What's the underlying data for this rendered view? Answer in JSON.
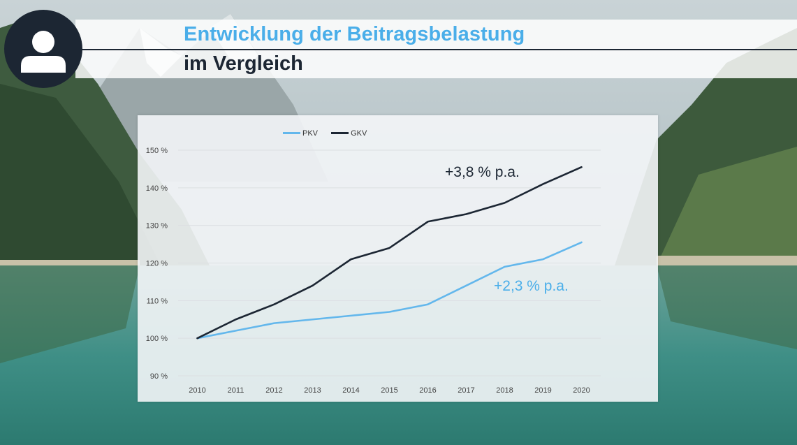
{
  "header": {
    "title": "Entwicklung der Beitragsbelastung",
    "subtitle": "im Vergleich",
    "avatar_icon": "user-icon"
  },
  "colors": {
    "accent": "#4aaee9",
    "dark": "#1c2633",
    "pkv_line": "#63b7ec",
    "gkv_line": "#1c2633"
  },
  "chart_data": {
    "type": "line",
    "x": [
      "2010",
      "2011",
      "2012",
      "2013",
      "2014",
      "2015",
      "2016",
      "2017",
      "2018",
      "2019",
      "2020"
    ],
    "y_ticks": [
      "90 %",
      "100 %",
      "110 %",
      "120 %",
      "130 %",
      "140 %",
      "150 %"
    ],
    "ylim": [
      90,
      150
    ],
    "grid": true,
    "legend_position": "top",
    "series": [
      {
        "name": "PKV",
        "color": "#63b7ec",
        "values": [
          100,
          102,
          104,
          105,
          106,
          107,
          109,
          114,
          119,
          121,
          125.5
        ]
      },
      {
        "name": "GKV",
        "color": "#1c2633",
        "values": [
          100,
          105,
          109,
          114,
          121,
          124,
          131,
          133,
          136,
          141,
          145.5
        ]
      }
    ],
    "annotations": [
      {
        "text": "+3,8 % p.a.",
        "series": "GKV"
      },
      {
        "text": "+2,3 % p.a.",
        "series": "PKV"
      }
    ]
  }
}
